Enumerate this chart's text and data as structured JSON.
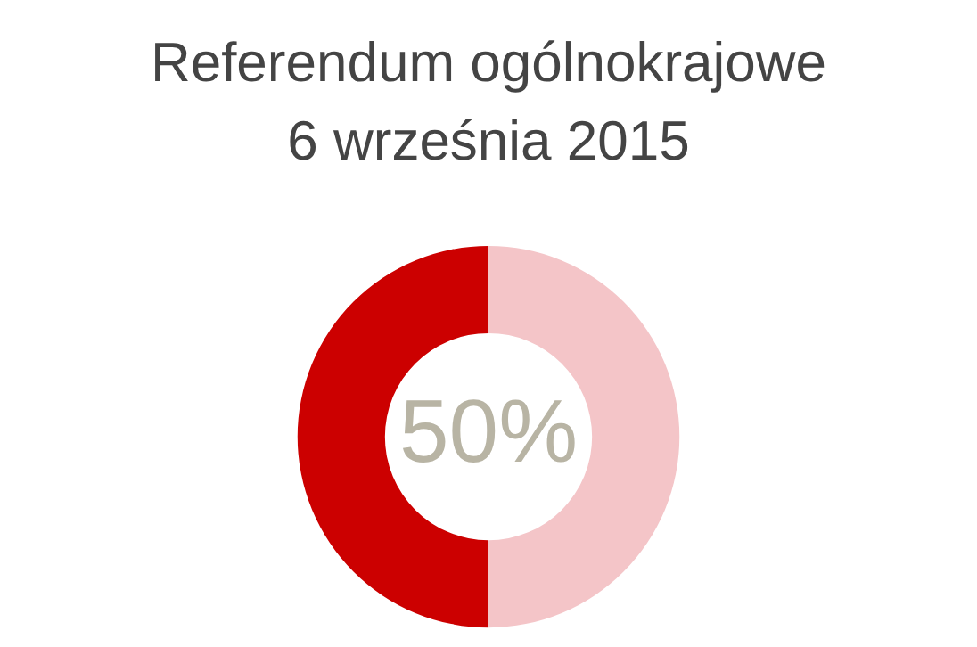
{
  "chart_data": {
    "type": "donut",
    "title": "Referendum ogólnokrajowe\n6 września 2015",
    "categories": [
      null,
      null
    ],
    "values": [
      50,
      50
    ],
    "colors": [
      "#cc0000",
      "#f4c5c8"
    ],
    "annotations": [
      "50%"
    ]
  }
}
